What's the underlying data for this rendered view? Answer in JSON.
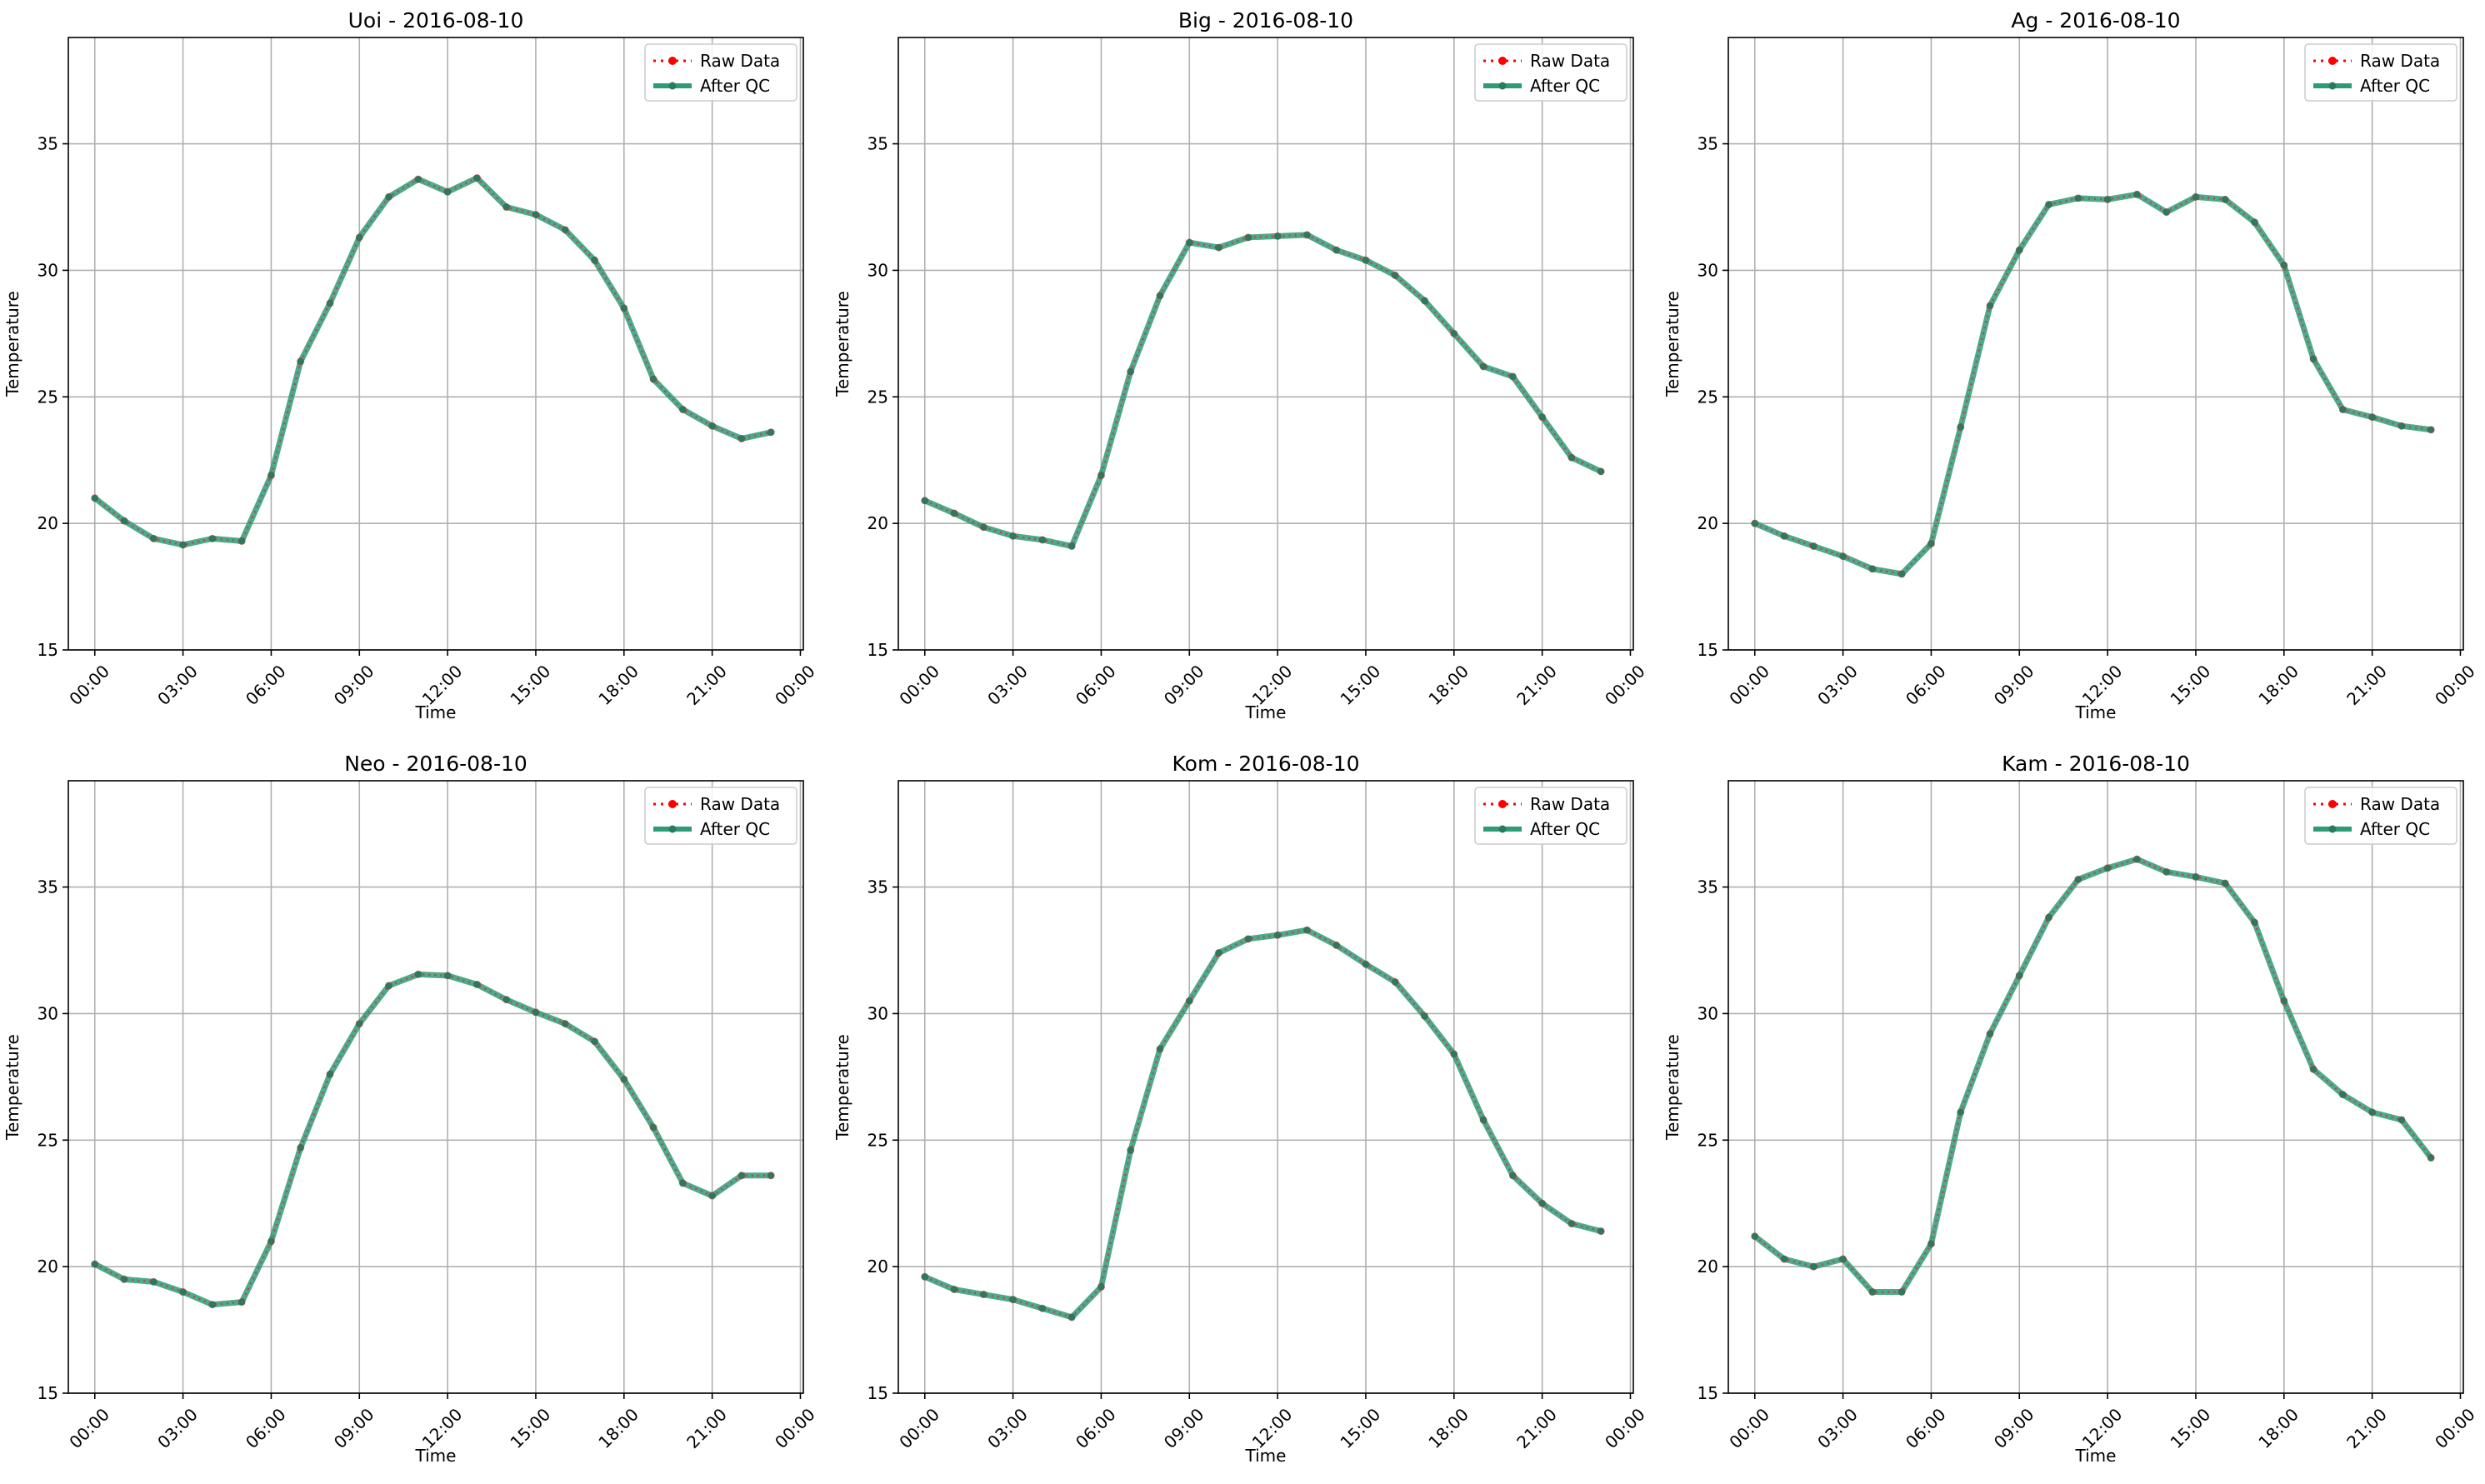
{
  "colors": {
    "raw": "#ff0000",
    "qc": "#2e9b78",
    "qc_marker": "#2a7a60",
    "grid": "#b0b0b0"
  },
  "chart_data": [
    {
      "type": "line",
      "title": "Uoi - 2016-08-10",
      "xlabel": "Time",
      "ylabel": "Temperature",
      "xlim": [
        -0.9,
        24.1
      ],
      "ylim": [
        15,
        39.2
      ],
      "xticks": [
        0,
        3,
        6,
        9,
        12,
        15,
        18,
        21,
        24
      ],
      "xticklabels": [
        "00:00",
        "03:00",
        "06:00",
        "09:00",
        "12:00",
        "15:00",
        "18:00",
        "21:00",
        "00:00"
      ],
      "yticks": [
        15,
        20,
        25,
        30,
        35
      ],
      "yticklabels": [
        "15",
        "20",
        "25",
        "30",
        "35"
      ],
      "grid": true,
      "legend": "top-right",
      "x": [
        0,
        1,
        2,
        3,
        4,
        5,
        6,
        7,
        8,
        9,
        10,
        11,
        12,
        13,
        14,
        15,
        16,
        17,
        18,
        19,
        20,
        21,
        22,
        23
      ],
      "series": [
        {
          "name": "Raw Data",
          "values": [
            21.0,
            20.1,
            19.4,
            19.15,
            19.4,
            19.3,
            21.9,
            26.4,
            28.7,
            31.3,
            32.9,
            33.6,
            33.1,
            33.65,
            32.5,
            32.2,
            31.6,
            30.4,
            28.5,
            25.7,
            24.5,
            23.85,
            23.35,
            23.6
          ]
        },
        {
          "name": "After QC",
          "values": [
            21.0,
            20.1,
            19.4,
            19.15,
            19.4,
            19.3,
            21.9,
            26.4,
            28.7,
            31.3,
            32.9,
            33.6,
            33.1,
            33.65,
            32.5,
            32.2,
            31.6,
            30.4,
            28.5,
            25.7,
            24.5,
            23.85,
            23.35,
            23.6
          ]
        }
      ]
    },
    {
      "type": "line",
      "title": "Big - 2016-08-10",
      "xlabel": "Time",
      "ylabel": "Temperature",
      "xlim": [
        -0.9,
        24.1
      ],
      "ylim": [
        15,
        39.2
      ],
      "xticks": [
        0,
        3,
        6,
        9,
        12,
        15,
        18,
        21,
        24
      ],
      "xticklabels": [
        "00:00",
        "03:00",
        "06:00",
        "09:00",
        "12:00",
        "15:00",
        "18:00",
        "21:00",
        "00:00"
      ],
      "yticks": [
        15,
        20,
        25,
        30,
        35
      ],
      "yticklabels": [
        "15",
        "20",
        "25",
        "30",
        "35"
      ],
      "grid": true,
      "legend": "top-right",
      "x": [
        0,
        1,
        2,
        3,
        4,
        5,
        6,
        7,
        8,
        9,
        10,
        11,
        12,
        13,
        14,
        15,
        16,
        17,
        18,
        19,
        20,
        21,
        22,
        23
      ],
      "series": [
        {
          "name": "Raw Data",
          "values": [
            20.9,
            20.4,
            19.85,
            19.5,
            19.35,
            19.1,
            21.9,
            26.0,
            29.0,
            31.1,
            30.9,
            31.3,
            31.35,
            31.4,
            30.8,
            30.4,
            29.8,
            28.8,
            27.5,
            26.2,
            25.8,
            24.2,
            22.6,
            22.05
          ]
        },
        {
          "name": "After QC",
          "values": [
            20.9,
            20.4,
            19.85,
            19.5,
            19.35,
            19.1,
            21.9,
            26.0,
            29.0,
            31.1,
            30.9,
            31.3,
            31.35,
            31.4,
            30.8,
            30.4,
            29.8,
            28.8,
            27.5,
            26.2,
            25.8,
            24.2,
            22.6,
            22.05
          ]
        }
      ]
    },
    {
      "type": "line",
      "title": "Ag - 2016-08-10",
      "xlabel": "Time",
      "ylabel": "Temperature",
      "xlim": [
        -0.9,
        24.1
      ],
      "ylim": [
        15,
        39.2
      ],
      "xticks": [
        0,
        3,
        6,
        9,
        12,
        15,
        18,
        21,
        24
      ],
      "xticklabels": [
        "00:00",
        "03:00",
        "06:00",
        "09:00",
        "12:00",
        "15:00",
        "18:00",
        "21:00",
        "00:00"
      ],
      "yticks": [
        15,
        20,
        25,
        30,
        35
      ],
      "yticklabels": [
        "15",
        "20",
        "25",
        "30",
        "35"
      ],
      "grid": true,
      "legend": "top-right",
      "x": [
        0,
        1,
        2,
        3,
        4,
        5,
        6,
        7,
        8,
        9,
        10,
        11,
        12,
        13,
        14,
        15,
        16,
        17,
        18,
        19,
        20,
        21,
        22,
        23
      ],
      "series": [
        {
          "name": "Raw Data",
          "values": [
            20.0,
            19.5,
            19.1,
            18.7,
            18.2,
            18.0,
            19.2,
            23.8,
            28.6,
            30.8,
            32.6,
            32.85,
            32.8,
            33.0,
            32.3,
            32.9,
            32.8,
            31.9,
            30.2,
            26.5,
            24.5,
            24.2,
            23.85,
            23.7
          ]
        },
        {
          "name": "After QC",
          "values": [
            20.0,
            19.5,
            19.1,
            18.7,
            18.2,
            18.0,
            19.2,
            23.8,
            28.6,
            30.8,
            32.6,
            32.85,
            32.8,
            33.0,
            32.3,
            32.9,
            32.8,
            31.9,
            30.2,
            26.5,
            24.5,
            24.2,
            23.85,
            23.7
          ]
        }
      ]
    },
    {
      "type": "line",
      "title": "Neo - 2016-08-10",
      "xlabel": "Time",
      "ylabel": "Temperature",
      "xlim": [
        -0.9,
        24.1
      ],
      "ylim": [
        15,
        39.2
      ],
      "xticks": [
        0,
        3,
        6,
        9,
        12,
        15,
        18,
        21,
        24
      ],
      "xticklabels": [
        "00:00",
        "03:00",
        "06:00",
        "09:00",
        "12:00",
        "15:00",
        "18:00",
        "21:00",
        "00:00"
      ],
      "yticks": [
        15,
        20,
        25,
        30,
        35
      ],
      "yticklabels": [
        "15",
        "20",
        "25",
        "30",
        "35"
      ],
      "grid": true,
      "legend": "top-right",
      "x": [
        0,
        1,
        2,
        3,
        4,
        5,
        6,
        7,
        8,
        9,
        10,
        11,
        12,
        13,
        14,
        15,
        16,
        17,
        18,
        19,
        20,
        21,
        22,
        23
      ],
      "series": [
        {
          "name": "Raw Data",
          "values": [
            20.1,
            19.5,
            19.4,
            19.0,
            18.5,
            18.6,
            21.0,
            24.7,
            27.6,
            29.6,
            31.1,
            31.55,
            31.5,
            31.15,
            30.55,
            30.05,
            29.6,
            28.9,
            27.4,
            25.5,
            23.3,
            22.8,
            23.6,
            23.6
          ]
        },
        {
          "name": "After QC",
          "values": [
            20.1,
            19.5,
            19.4,
            19.0,
            18.5,
            18.6,
            21.0,
            24.7,
            27.6,
            29.6,
            31.1,
            31.55,
            31.5,
            31.15,
            30.55,
            30.05,
            29.6,
            28.9,
            27.4,
            25.5,
            23.3,
            22.8,
            23.6,
            23.6
          ]
        }
      ]
    },
    {
      "type": "line",
      "title": "Kom - 2016-08-10",
      "xlabel": "Time",
      "ylabel": "Temperature",
      "xlim": [
        -0.9,
        24.1
      ],
      "ylim": [
        15,
        39.2
      ],
      "xticks": [
        0,
        3,
        6,
        9,
        12,
        15,
        18,
        21,
        24
      ],
      "xticklabels": [
        "00:00",
        "03:00",
        "06:00",
        "09:00",
        "12:00",
        "15:00",
        "18:00",
        "21:00",
        "00:00"
      ],
      "yticks": [
        15,
        20,
        25,
        30,
        35
      ],
      "yticklabels": [
        "15",
        "20",
        "25",
        "30",
        "35"
      ],
      "grid": true,
      "legend": "top-right",
      "x": [
        0,
        1,
        2,
        3,
        4,
        5,
        6,
        7,
        8,
        9,
        10,
        11,
        12,
        13,
        14,
        15,
        16,
        17,
        18,
        19,
        20,
        21,
        22,
        23
      ],
      "series": [
        {
          "name": "Raw Data",
          "values": [
            19.6,
            19.1,
            18.9,
            18.7,
            18.35,
            18.0,
            19.2,
            24.6,
            28.6,
            30.5,
            32.4,
            32.95,
            33.1,
            33.3,
            32.7,
            31.95,
            31.25,
            29.9,
            28.4,
            25.8,
            23.6,
            22.5,
            21.7,
            21.4
          ]
        },
        {
          "name": "After QC",
          "values": [
            19.6,
            19.1,
            18.9,
            18.7,
            18.35,
            18.0,
            19.2,
            24.6,
            28.6,
            30.5,
            32.4,
            32.95,
            33.1,
            33.3,
            32.7,
            31.95,
            31.25,
            29.9,
            28.4,
            25.8,
            23.6,
            22.5,
            21.7,
            21.4
          ]
        }
      ]
    },
    {
      "type": "line",
      "title": "Kam - 2016-08-10",
      "xlabel": "Time",
      "ylabel": "Temperature",
      "xlim": [
        -0.9,
        24.1
      ],
      "ylim": [
        15,
        39.2
      ],
      "xticks": [
        0,
        3,
        6,
        9,
        12,
        15,
        18,
        21,
        24
      ],
      "xticklabels": [
        "00:00",
        "03:00",
        "06:00",
        "09:00",
        "12:00",
        "15:00",
        "18:00",
        "21:00",
        "00:00"
      ],
      "yticks": [
        15,
        20,
        25,
        30,
        35
      ],
      "yticklabels": [
        "15",
        "20",
        "25",
        "30",
        "35"
      ],
      "grid": true,
      "legend": "top-right",
      "x": [
        0,
        1,
        2,
        3,
        4,
        5,
        6,
        7,
        8,
        9,
        10,
        11,
        12,
        13,
        14,
        15,
        16,
        17,
        18,
        19,
        20,
        21,
        22,
        23
      ],
      "series": [
        {
          "name": "Raw Data",
          "values": [
            21.2,
            20.3,
            20.0,
            20.3,
            19.0,
            19.0,
            20.9,
            26.1,
            29.2,
            31.5,
            33.8,
            35.3,
            35.75,
            36.1,
            35.6,
            35.4,
            35.15,
            33.6,
            30.5,
            27.8,
            26.8,
            26.1,
            25.8,
            24.3
          ]
        },
        {
          "name": "After QC",
          "values": [
            21.2,
            20.3,
            20.0,
            20.3,
            19.0,
            19.0,
            20.9,
            26.1,
            29.2,
            31.5,
            33.8,
            35.3,
            35.75,
            36.1,
            35.6,
            35.4,
            35.15,
            33.6,
            30.5,
            27.8,
            26.8,
            26.1,
            25.8,
            24.3
          ]
        }
      ]
    }
  ]
}
